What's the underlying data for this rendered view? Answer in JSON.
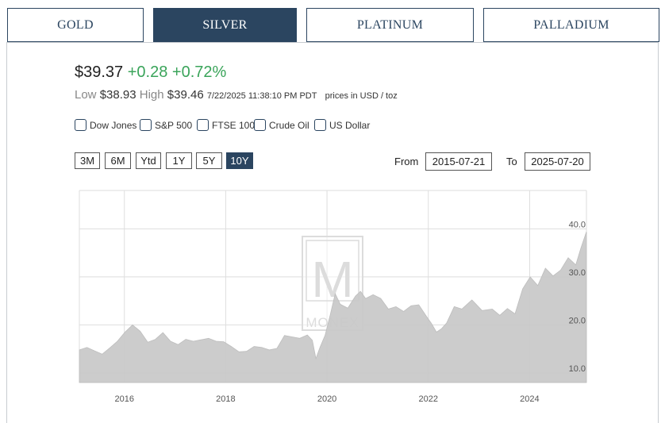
{
  "tabs": [
    {
      "label": "GOLD",
      "active": false
    },
    {
      "label": "SILVER",
      "active": true
    },
    {
      "label": "PLATINUM",
      "active": false
    },
    {
      "label": "PALLADIUM",
      "active": false
    }
  ],
  "quote": {
    "price": "$39.37",
    "change": "+0.28",
    "change_pct": "+0.72%",
    "low_label": "Low",
    "low": "$38.93",
    "high_label": "High",
    "high": "$39.46",
    "timestamp": "7/22/2025 11:38:10 PM PDT",
    "units": "prices in USD / toz"
  },
  "comparisons": [
    "Dow Jones",
    "S&P 500",
    "FTSE 100",
    "Crude Oil",
    "US Dollar"
  ],
  "ranges": [
    {
      "label": "3M",
      "active": false
    },
    {
      "label": "6M",
      "active": false
    },
    {
      "label": "Ytd",
      "active": false
    },
    {
      "label": "1Y",
      "active": false
    },
    {
      "label": "5Y",
      "active": false
    },
    {
      "label": "10Y",
      "active": true
    }
  ],
  "date_range": {
    "from_label": "From",
    "from": "2015-07-21",
    "to_label": "To",
    "to": "2025-07-20"
  },
  "colors": {
    "navy": "#2b4560",
    "up": "#3aa45a",
    "area": "#c8c8c8"
  },
  "watermark": "MONEX",
  "chart_data": {
    "type": "area",
    "title": "",
    "xlabel": "",
    "ylabel": "",
    "xlim": [
      2015.55,
      2025.56
    ],
    "ylim": [
      8,
      48
    ],
    "x_ticks": [
      2016,
      2018,
      2020,
      2022,
      2024
    ],
    "x_tick_labels": [
      "2016",
      "2018",
      "2020",
      "2022",
      "2024"
    ],
    "y_ticks": [
      10.0,
      20.0,
      30.0,
      40.0
    ],
    "y_tick_labels": [
      "10.0",
      "20.0",
      "30.0",
      "40.0"
    ],
    "grid": true,
    "series": [
      {
        "x": [
          2015.55,
          2015.7,
          2015.85,
          2016.0,
          2016.15,
          2016.3,
          2016.45,
          2016.6,
          2016.75,
          2016.9,
          2017.05,
          2017.2,
          2017.35,
          2017.5,
          2017.65,
          2017.8,
          2017.95,
          2018.1,
          2018.25,
          2018.4,
          2018.55,
          2018.7,
          2018.85,
          2019.0,
          2019.15,
          2019.3,
          2019.45,
          2019.6,
          2019.75,
          2019.9,
          2020.05,
          2020.15,
          2020.22,
          2020.3,
          2020.4,
          2020.5,
          2020.6,
          2020.7,
          2020.85,
          2021.0,
          2021.1,
          2021.2,
          2021.35,
          2021.5,
          2021.65,
          2021.8,
          2021.95,
          2022.1,
          2022.25,
          2022.4,
          2022.5,
          2022.6,
          2022.7,
          2022.8,
          2022.95,
          2023.1,
          2023.3,
          2023.5,
          2023.7,
          2023.85,
          2024.0,
          2024.15,
          2024.3,
          2024.45,
          2024.6,
          2024.75,
          2024.9,
          2025.05,
          2025.2,
          2025.35,
          2025.45,
          2025.56
        ],
        "y": [
          14.8,
          15.3,
          14.6,
          13.9,
          15.2,
          16.6,
          18.5,
          20.0,
          18.7,
          16.4,
          17.0,
          18.4,
          16.6,
          15.9,
          17.0,
          16.6,
          16.9,
          17.2,
          16.6,
          16.5,
          15.5,
          14.4,
          14.5,
          15.5,
          15.3,
          14.8,
          15.1,
          17.8,
          17.5,
          17.2,
          17.9,
          16.8,
          13.0,
          15.3,
          17.8,
          22.0,
          26.5,
          24.3,
          23.5,
          26.0,
          27.0,
          25.5,
          26.3,
          25.5,
          23.3,
          23.8,
          22.8,
          24.0,
          24.2,
          21.8,
          20.3,
          18.5,
          19.2,
          20.4,
          23.8,
          23.3,
          25.2,
          23.0,
          23.3,
          22.0,
          23.4,
          22.3,
          27.5,
          30.0,
          28.2,
          31.8,
          30.2,
          31.4,
          34.0,
          32.5,
          36.0,
          39.4
        ]
      }
    ]
  }
}
